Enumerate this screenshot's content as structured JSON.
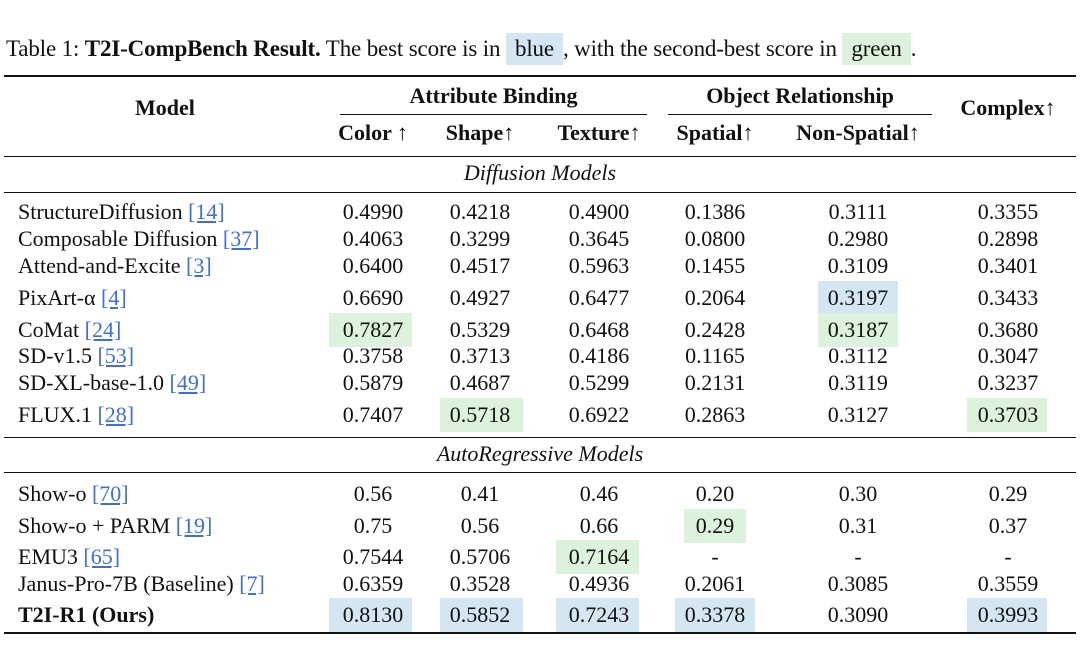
{
  "caption": {
    "prefix": "Table 1: ",
    "title": "T2I-CompBench Result.",
    "mid": " The best score is in ",
    "blue": "blue",
    "mid2": ", with the second-best score in ",
    "green": "green",
    "end": "."
  },
  "header": {
    "model": "Model",
    "group_attribute": "Attribute Binding",
    "group_object": "Object Relationship",
    "complex": "Complex↑",
    "color": "Color ↑",
    "shape": "Shape↑",
    "texture": "Texture↑",
    "spatial": "Spatial↑",
    "nonspatial": "Non-Spatial↑"
  },
  "sections": {
    "diffusion": "Diffusion Models",
    "autoregressive": "AutoRegressive Models"
  },
  "rows": [
    {
      "name": "StructureDiffusion ",
      "ref": "[14]",
      "color": "0.4990",
      "shape": "0.4218",
      "texture": "0.4900",
      "spatial": "0.1386",
      "nonspatial": "0.3111",
      "complex": "0.3355"
    },
    {
      "name": "Composable Diffusion ",
      "ref": "[37]",
      "color": "0.4063",
      "shape": "0.3299",
      "texture": "0.3645",
      "spatial": "0.0800",
      "nonspatial": "0.2980",
      "complex": "0.2898"
    },
    {
      "name": "Attend-and-Excite ",
      "ref": "[3]",
      "color": "0.6400",
      "shape": "0.4517",
      "texture": "0.5963",
      "spatial": "0.1455",
      "nonspatial": "0.3109",
      "complex": "0.3401"
    },
    {
      "name": "PixArt-α ",
      "ref": "[4]",
      "color": "0.6690",
      "shape": "0.4927",
      "texture": "0.6477",
      "spatial": "0.2064",
      "nonspatial": "0.3197",
      "complex": "0.3433"
    },
    {
      "name": "CoMat ",
      "ref": "[24]",
      "color": "0.7827",
      "shape": "0.5329",
      "texture": "0.6468",
      "spatial": "0.2428",
      "nonspatial": "0.3187",
      "complex": "0.3680"
    },
    {
      "name": "SD-v1.5 ",
      "ref": "[53]",
      "color": "0.3758",
      "shape": "0.3713",
      "texture": "0.4186",
      "spatial": "0.1165",
      "nonspatial": "0.3112",
      "complex": "0.3047"
    },
    {
      "name": "SD-XL-base-1.0 ",
      "ref": "[49]",
      "color": "0.5879",
      "shape": "0.4687",
      "texture": "0.5299",
      "spatial": "0.2131",
      "nonspatial": "0.3119",
      "complex": "0.3237"
    },
    {
      "name": "FLUX.1 ",
      "ref": "[28]",
      "color": "0.7407",
      "shape": "0.5718",
      "texture": "0.6922",
      "spatial": "0.2863",
      "nonspatial": "0.3127",
      "complex": "0.3703"
    },
    {
      "name": "Show-o ",
      "ref": "[70]",
      "color": "0.56",
      "shape": "0.41",
      "texture": "0.46",
      "spatial": "0.20",
      "nonspatial": "0.30",
      "complex": "0.29"
    },
    {
      "name": "Show-o + PARM ",
      "ref": "[19]",
      "color": "0.75",
      "shape": "0.56",
      "texture": "0.66",
      "spatial": "0.29",
      "nonspatial": "0.31",
      "complex": "0.37"
    },
    {
      "name": "EMU3 ",
      "ref": "[65]",
      "color": "0.7544",
      "shape": "0.5706",
      "texture": "0.7164",
      "spatial": "-",
      "nonspatial": "-",
      "complex": "-"
    },
    {
      "name": "Janus-Pro-7B (Baseline) ",
      "ref": "[7]",
      "color": "0.6359",
      "shape": "0.3528",
      "texture": "0.4936",
      "spatial": "0.2061",
      "nonspatial": "0.3085",
      "complex": "0.3559"
    },
    {
      "name": "T2I-R1 (Ours)",
      "ref": "",
      "color": "0.8130",
      "shape": "0.5852",
      "texture": "0.7243",
      "spatial": "0.3378",
      "nonspatial": "0.3090",
      "complex": "0.3993"
    }
  ],
  "highlight_colors": {
    "best": "#d3e6f1",
    "second": "#ddf2dc"
  }
}
